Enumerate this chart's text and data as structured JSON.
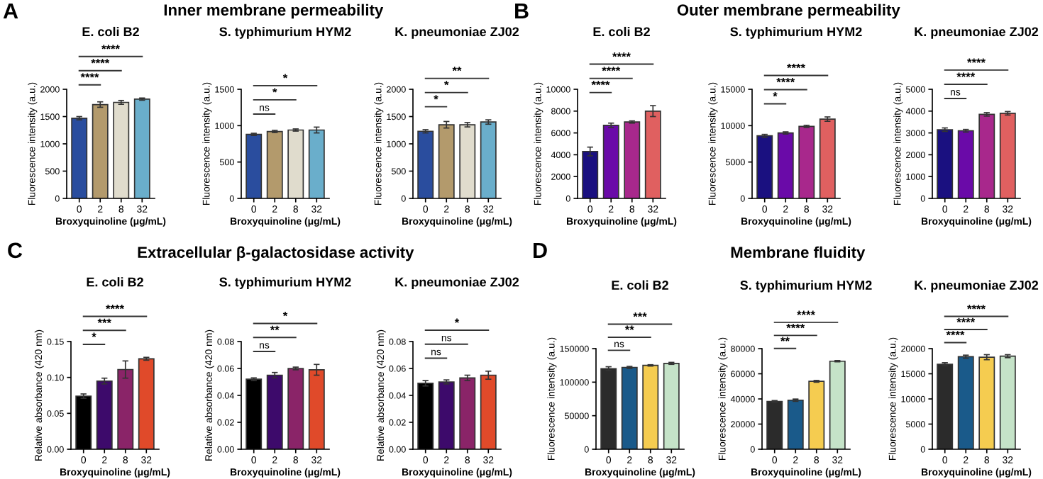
{
  "chart_data": [
    {
      "type": "bar",
      "title": "E. coli B2",
      "xlabel": "Broxyquinoline (μg/mL)",
      "ylabel": "Fluorescence intensity (a.u.)",
      "categories": [
        "0",
        "2",
        "8",
        "32"
      ],
      "values": [
        1470,
        1720,
        1760,
        1820
      ],
      "errors": [
        30,
        50,
        35,
        20
      ],
      "colors": [
        "#2a4d9e",
        "#b39a6c",
        "#e0dccd",
        "#6aaecb"
      ],
      "ylim": [
        0,
        2000
      ],
      "yticks": [
        0,
        500,
        1000,
        1500,
        2000
      ],
      "annotations": [
        "A",
        "Inner membrane permeability",
        "****",
        "****",
        "****"
      ]
    },
    {
      "type": "bar",
      "title": "S. typhimurium HYM2",
      "xlabel": "Broxyquinoline (μg/mL)",
      "ylabel": "Fluorescence intensity (a.u.)",
      "categories": [
        "0",
        "2",
        "8",
        "32"
      ],
      "values": [
        880,
        920,
        940,
        940
      ],
      "errors": [
        15,
        15,
        15,
        40
      ],
      "colors": [
        "#2a4d9e",
        "#b39a6c",
        "#e0dccd",
        "#6aaecb"
      ],
      "ylim": [
        0,
        1500
      ],
      "yticks": [
        0,
        500,
        1000,
        1500
      ],
      "annotations": [
        "ns",
        "*",
        "*"
      ]
    },
    {
      "type": "bar",
      "title": "K. pneumoniae ZJ02",
      "xlabel": "Broxyquinoline (μg/mL)",
      "ylabel": "Fluorescence intensity (a.u.)",
      "categories": [
        "0",
        "2",
        "8",
        "32"
      ],
      "values": [
        1230,
        1350,
        1350,
        1400
      ],
      "errors": [
        30,
        60,
        40,
        40
      ],
      "colors": [
        "#2a4d9e",
        "#b39a6c",
        "#e0dccd",
        "#6aaecb"
      ],
      "ylim": [
        0,
        2000
      ],
      "yticks": [
        0,
        500,
        1000,
        1500,
        2000
      ],
      "annotations": [
        "*",
        "*",
        "**"
      ]
    },
    {
      "type": "bar",
      "title": "E. coli B2",
      "xlabel": "Broxyquinoline (μg/mL)",
      "ylabel": "Fluorescence intensity (a.u.)",
      "categories": [
        "0",
        "2",
        "8",
        "32"
      ],
      "values": [
        4300,
        6700,
        7000,
        8000
      ],
      "errors": [
        400,
        200,
        100,
        500
      ],
      "colors": [
        "#1a1080",
        "#6a0aa8",
        "#a8288c",
        "#e06060"
      ],
      "ylim": [
        0,
        10000
      ],
      "yticks": [
        0,
        2000,
        4000,
        6000,
        8000,
        10000
      ],
      "annotations": [
        "B",
        "Outer membrane permeability",
        "****",
        "****",
        "****"
      ]
    },
    {
      "type": "bar",
      "title": "S. typhimurium HYM2",
      "xlabel": "Broxyquinoline (μg/mL)",
      "ylabel": "Fluorescence intensity (a.u.)",
      "categories": [
        "0",
        "2",
        "8",
        "32"
      ],
      "values": [
        8600,
        9000,
        9900,
        10900
      ],
      "errors": [
        200,
        150,
        150,
        300
      ],
      "colors": [
        "#1a1080",
        "#6a0aa8",
        "#a8288c",
        "#e06060"
      ],
      "ylim": [
        0,
        15000
      ],
      "yticks": [
        0,
        5000,
        10000,
        15000
      ],
      "annotations": [
        "*",
        "****",
        "****"
      ]
    },
    {
      "type": "bar",
      "title": "K. pneumoniae ZJ02",
      "xlabel": "Broxyquinoline (μg/mL)",
      "ylabel": "Fluorescence intensity (a.u.)",
      "categories": [
        "0",
        "2",
        "8",
        "32"
      ],
      "values": [
        3150,
        3100,
        3850,
        3900
      ],
      "errors": [
        80,
        60,
        80,
        80
      ],
      "colors": [
        "#1a1080",
        "#6a0aa8",
        "#a8288c",
        "#e06060"
      ],
      "ylim": [
        0,
        5000
      ],
      "yticks": [
        0,
        1000,
        2000,
        3000,
        4000,
        5000
      ],
      "annotations": [
        "ns",
        "****",
        "****"
      ]
    },
    {
      "type": "bar",
      "title": "E. coli B2",
      "xlabel": "Broxyquinoline (μg/mL)",
      "ylabel": "Relative absorbance (420 nm)",
      "categories": [
        "0",
        "2",
        "8",
        "32"
      ],
      "values": [
        0.074,
        0.095,
        0.111,
        0.126
      ],
      "errors": [
        0.003,
        0.004,
        0.012,
        0.002
      ],
      "colors": [
        "#000000",
        "#3d0a6b",
        "#8a2468",
        "#e04a2a"
      ],
      "ylim": [
        0,
        0.15
      ],
      "yticks": [
        {
          "value": 0,
          "label": "0.00"
        },
        {
          "value": 0.05,
          "label": "0.05"
        },
        {
          "value": 0.1,
          "label": "0.10"
        },
        {
          "value": 0.15,
          "label": "0.15"
        }
      ],
      "annotations": [
        "C",
        "Extracellular β-galactosidase activity",
        "*",
        "***",
        "****"
      ]
    },
    {
      "type": "bar",
      "title": "S. typhimurium HYM2",
      "xlabel": "Broxyquinoline (μg/mL)",
      "ylabel": "Relative absorbance (420 nm)",
      "categories": [
        "0",
        "2",
        "8",
        "32"
      ],
      "values": [
        0.052,
        0.055,
        0.06,
        0.059
      ],
      "errors": [
        0.001,
        0.002,
        0.001,
        0.004
      ],
      "colors": [
        "#000000",
        "#3d0a6b",
        "#8a2468",
        "#e04a2a"
      ],
      "ylim": [
        0,
        0.08
      ],
      "yticks": [
        {
          "value": 0,
          "label": "0.00"
        },
        {
          "value": 0.02,
          "label": "0.02"
        },
        {
          "value": 0.04,
          "label": "0.04"
        },
        {
          "value": 0.06,
          "label": "0.06"
        },
        {
          "value": 0.08,
          "label": "0.08"
        }
      ],
      "annotations": [
        "ns",
        "**",
        "*"
      ]
    },
    {
      "type": "bar",
      "title": "K. pneumoniae ZJ02",
      "xlabel": "Broxyquinoline (μg/mL)",
      "ylabel": "Relative absorbance (420 nm)",
      "categories": [
        "0",
        "2",
        "8",
        "32"
      ],
      "values": [
        0.049,
        0.05,
        0.053,
        0.055
      ],
      "errors": [
        0.002,
        0.0015,
        0.002,
        0.003
      ],
      "colors": [
        "#000000",
        "#3d0a6b",
        "#8a2468",
        "#e04a2a"
      ],
      "ylim": [
        0,
        0.08
      ],
      "yticks": [
        {
          "value": 0,
          "label": "0.00"
        },
        {
          "value": 0.02,
          "label": "0.02"
        },
        {
          "value": 0.04,
          "label": "0.04"
        },
        {
          "value": 0.06,
          "label": "0.06"
        },
        {
          "value": 0.08,
          "label": "0.08"
        }
      ],
      "annotations": [
        "ns",
        "ns",
        "*"
      ]
    },
    {
      "type": "bar",
      "title": "E. coli B2",
      "xlabel": "Broxyquinoline (μg/mL)",
      "ylabel": "Fluorescence intensity (a.u.)",
      "categories": [
        "0",
        "2",
        "8",
        "32"
      ],
      "values": [
        120000,
        122000,
        125000,
        128000
      ],
      "errors": [
        3000,
        1500,
        1000,
        1500
      ],
      "colors": [
        "#2b2b2b",
        "#1a5a8a",
        "#f5cc50",
        "#c5e3c8"
      ],
      "ylim": [
        0,
        150000
      ],
      "yticks": [
        0,
        50000,
        100000,
        150000
      ],
      "annotations": [
        "D",
        "Membrane fluidity",
        "ns",
        "**",
        "***"
      ]
    },
    {
      "type": "bar",
      "title": "S. typhimurium HYM2",
      "xlabel": "Broxyquinoline (μg/mL)",
      "ylabel": "Fluorescence intensity (a.u.)",
      "categories": [
        "0",
        "2",
        "8",
        "32"
      ],
      "values": [
        38000,
        39000,
        54000,
        70000
      ],
      "errors": [
        700,
        900,
        700,
        500
      ],
      "colors": [
        "#2b2b2b",
        "#1a5a8a",
        "#f5cc50",
        "#c5e3c8"
      ],
      "ylim": [
        0,
        80000
      ],
      "yticks": [
        0,
        20000,
        40000,
        60000,
        80000
      ],
      "annotations": [
        "**",
        "****",
        "****"
      ]
    },
    {
      "type": "bar",
      "title": "K. pneumoniae ZJ02",
      "xlabel": "Broxyquinoline (μg/mL)",
      "ylabel": "Fluorescence intensity (a.u.)",
      "categories": [
        "0",
        "2",
        "8",
        "32"
      ],
      "values": [
        16900,
        18400,
        18300,
        18500
      ],
      "errors": [
        300,
        300,
        500,
        300
      ],
      "colors": [
        "#2b2b2b",
        "#1a5a8a",
        "#f5cc50",
        "#c5e3c8"
      ],
      "ylim": [
        0,
        20000
      ],
      "yticks": [
        0,
        5000,
        10000,
        15000,
        20000
      ],
      "annotations": [
        "****",
        "****",
        "****"
      ]
    }
  ]
}
